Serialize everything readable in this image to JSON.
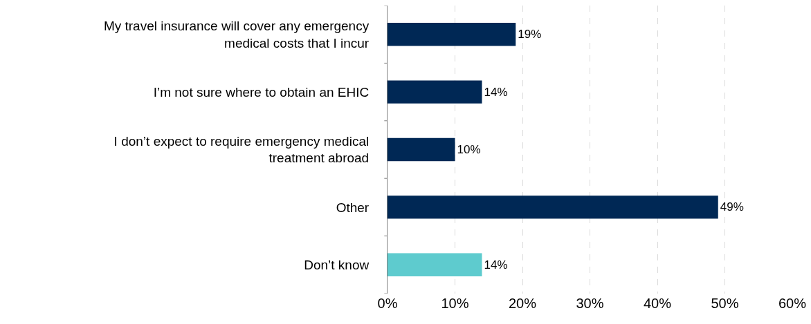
{
  "chart_data": {
    "type": "bar",
    "orientation": "horizontal",
    "categories": [
      "My travel insurance will cover any emergency medical costs that I incur",
      "I’m not sure where to obtain an EHIC",
      "I don’t expect to require emergency medical treatment abroad",
      "Other",
      "Don’t know"
    ],
    "values": [
      19,
      14,
      10,
      49,
      14
    ],
    "colors": [
      "#002855",
      "#002855",
      "#002855",
      "#002855",
      "#5ecbce"
    ],
    "value_labels": [
      "19%",
      "14%",
      "10%",
      "49%",
      "14%"
    ],
    "xlim": [
      0,
      60
    ],
    "xticks": [
      {
        "value": 0,
        "label": "0%"
      },
      {
        "value": 10,
        "label": "10%"
      },
      {
        "value": 20,
        "label": "20%"
      },
      {
        "value": 30,
        "label": "30%"
      },
      {
        "value": 40,
        "label": "40%"
      },
      {
        "value": 50,
        "label": "50%"
      },
      {
        "value": 60,
        "label": "60%"
      }
    ],
    "grid": "x",
    "legend": false
  }
}
